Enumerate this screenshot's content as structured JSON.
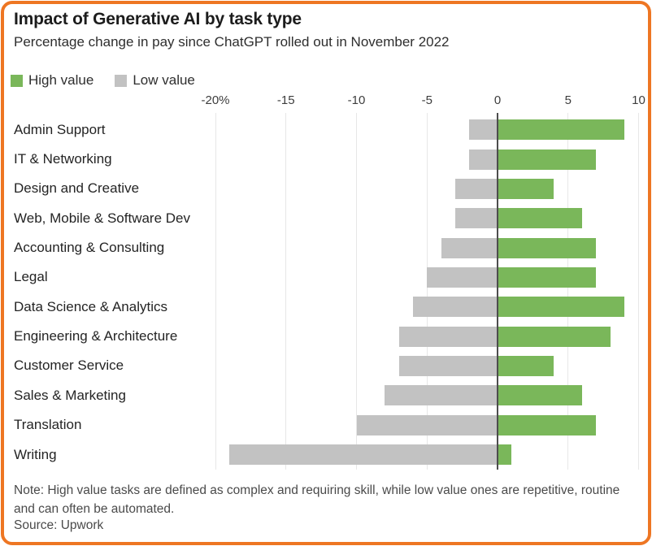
{
  "header": {
    "title": "Impact of Generative AI by task type",
    "subtitle": "Percentage change in pay since ChatGPT rolled out in November 2022"
  },
  "legend": [
    {
      "label": "High value",
      "color": "#7ab75a"
    },
    {
      "label": "Low value",
      "color": "#c2c2c2"
    }
  ],
  "chart_data": {
    "type": "bar",
    "orientation": "horizontal",
    "title": "Impact of Generative AI by task type",
    "subtitle": "Percentage change in pay since ChatGPT rolled out in November 2022",
    "xlabel": "Percentage change in pay",
    "xlim": [
      -20,
      10
    ],
    "grid": "vertical",
    "zero_line": true,
    "legend_position": "top-left",
    "x_ticks": [
      {
        "value": -20,
        "label": "-20%"
      },
      {
        "value": -15,
        "label": "-15"
      },
      {
        "value": -10,
        "label": "-10"
      },
      {
        "value": -5,
        "label": "-5"
      },
      {
        "value": 0,
        "label": "0"
      },
      {
        "value": 5,
        "label": "5"
      },
      {
        "value": 10,
        "label": "10"
      }
    ],
    "categories": [
      "Admin Support",
      "IT & Networking",
      "Design and Creative",
      "Web, Mobile & Software Dev",
      "Accounting & Consulting",
      "Legal",
      "Data Science & Analytics",
      "Engineering & Architecture",
      "Customer Service",
      "Sales & Marketing",
      "Translation",
      "Writing"
    ],
    "series": [
      {
        "name": "High value",
        "color": "#7ab75a",
        "values": [
          9,
          7,
          4,
          6,
          7,
          7,
          9,
          8,
          4,
          6,
          7,
          1
        ]
      },
      {
        "name": "Low value",
        "color": "#c2c2c2",
        "values": [
          -2,
          -2,
          -3,
          -3,
          -4,
          -5,
          -6,
          -7,
          -7,
          -8,
          -10,
          -19
        ]
      }
    ]
  },
  "footer": {
    "note": "Note: High value tasks are defined as complex and requiring skill, while low value ones are repetitive, routine and can often be automated.",
    "source": "Source: Upwork"
  },
  "colors": {
    "frame_border": "#ee7623",
    "high_value": "#7ab75a",
    "low_value": "#c2c2c2",
    "zero_line": "#4d4d4d",
    "grid_line": "#e7e7e7"
  }
}
